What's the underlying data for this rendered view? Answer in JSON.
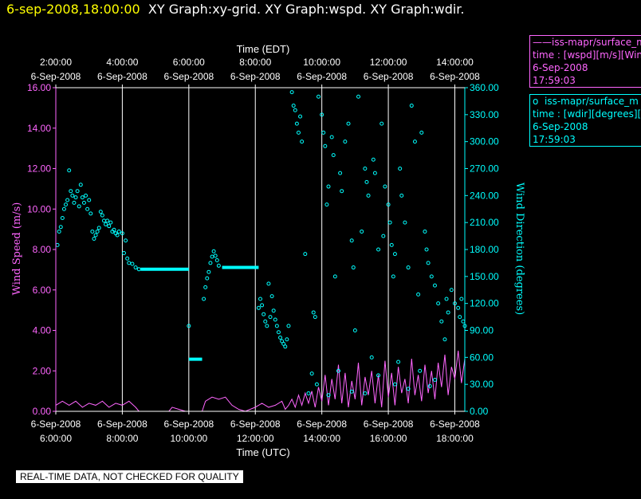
{
  "header": {
    "timestamp": "6-sep-2008,18:00:00",
    "graphs": "XY Graph:xy-grid.  XY Graph:wspd.  XY Graph:wdir."
  },
  "legend": [
    {
      "symbol": "——",
      "name": "iss-mapr/surface_m",
      "line2": "time : [wspd][m/s][Wind",
      "date": "6-Sep-2008",
      "time": "17:59:03",
      "color": "#ff66ff"
    },
    {
      "symbol": "o",
      "name": "iss-mapr/surface_m",
      "line2": "time : [wdir][degrees][W",
      "date": "6-Sep-2008",
      "time": "17:59:03",
      "color": "#00ffff"
    }
  ],
  "note": "REAL-TIME DATA, NOT CHECKED FOR QUALITY",
  "colors": {
    "wspd": "#ff66ff",
    "wdir": "#00ffff",
    "grid": "#ffffff",
    "background": "#000000"
  },
  "chart_data": {
    "type": "scatter",
    "top_axis": {
      "label": "Time (EDT)",
      "ticks": [
        {
          "x": 6,
          "t": "2:00:00",
          "d": "6-Sep-2008"
        },
        {
          "x": 8,
          "t": "4:00:00",
          "d": "6-Sep-2008"
        },
        {
          "x": 10,
          "t": "6:00:00",
          "d": "6-Sep-2008"
        },
        {
          "x": 12,
          "t": "8:00:00",
          "d": "6-Sep-2008"
        },
        {
          "x": 14,
          "t": "10:00:00",
          "d": "6-Sep-2008"
        },
        {
          "x": 16,
          "t": "12:00:00",
          "d": "6-Sep-2008"
        },
        {
          "x": 18,
          "t": "14:00:00",
          "d": "6-Sep-2008"
        }
      ]
    },
    "bottom_axis": {
      "label": "Time (UTC)",
      "ticks": [
        {
          "x": 6,
          "t": "6:00:00",
          "d": "6-Sep-2008"
        },
        {
          "x": 8,
          "t": "8:00:00",
          "d": "6-Sep-2008"
        },
        {
          "x": 10,
          "t": "10:00:00",
          "d": "6-Sep-2008"
        },
        {
          "x": 12,
          "t": "12:00:00",
          "d": "6-Sep-2008"
        },
        {
          "x": 14,
          "t": "14:00:00",
          "d": "6-Sep-2008"
        },
        {
          "x": 16,
          "t": "16:00:00",
          "d": "6-Sep-2008"
        },
        {
          "x": 18,
          "t": "18:00:00",
          "d": "6-Sep-2008"
        }
      ]
    },
    "xlim": [
      6,
      18.3
    ],
    "grid_x": [
      8,
      10,
      12,
      14,
      16,
      18
    ],
    "left_axis": {
      "label": "Wind Speed (m/s)",
      "range": [
        0,
        16
      ],
      "ticks": [
        "0.00",
        "2.00",
        "4.00",
        "6.00",
        "8.00",
        "10.00",
        "12.00",
        "14.00",
        "16.00"
      ]
    },
    "right_axis": {
      "label": "Wind Direction (degrees)",
      "range": [
        0,
        360
      ],
      "ticks": [
        "0.00",
        "30.00",
        "60.00",
        "90.00",
        "120.00",
        "150.00",
        "180.00",
        "210.00",
        "240.00",
        "270.00",
        "300.00",
        "330.00",
        "360.00"
      ]
    },
    "series": [
      {
        "key": "wspd",
        "type": "line",
        "axis": "left",
        "points": [
          [
            6,
            0.3
          ],
          [
            6.2,
            0.5
          ],
          [
            6.4,
            0.3
          ],
          [
            6.6,
            0.5
          ],
          [
            6.8,
            0.2
          ],
          [
            7.0,
            0.4
          ],
          [
            7.2,
            0.3
          ],
          [
            7.4,
            0.5
          ],
          [
            7.6,
            0.2
          ],
          [
            7.8,
            0.4
          ],
          [
            8.0,
            0.3
          ],
          [
            8.2,
            0.5
          ],
          [
            8.4,
            0.2
          ],
          [
            8.5,
            0.0
          ],
          [
            9.4,
            0.0
          ],
          [
            9.5,
            0.2
          ],
          [
            9.7,
            0.1
          ],
          [
            9.9,
            0.0
          ],
          [
            10.4,
            0.0
          ],
          [
            10.5,
            0.5
          ],
          [
            10.7,
            0.7
          ],
          [
            10.9,
            0.6
          ],
          [
            11.1,
            0.7
          ],
          [
            11.3,
            0.3
          ],
          [
            11.5,
            0.1
          ],
          [
            11.7,
            0.0
          ],
          [
            12.0,
            0.2
          ],
          [
            12.2,
            0.4
          ],
          [
            12.4,
            0.2
          ],
          [
            12.6,
            0.3
          ],
          [
            12.8,
            0.5
          ],
          [
            12.9,
            0.1
          ],
          [
            13.0,
            0.3
          ],
          [
            13.1,
            0.6
          ],
          [
            13.2,
            0.2
          ],
          [
            13.3,
            0.8
          ],
          [
            13.4,
            0.3
          ],
          [
            13.5,
            0.9
          ],
          [
            13.6,
            0.4
          ],
          [
            13.7,
            1.0
          ],
          [
            13.8,
            0.2
          ],
          [
            13.9,
            1.2
          ],
          [
            14.0,
            0.5
          ],
          [
            14.1,
            1.8
          ],
          [
            14.2,
            0.3
          ],
          [
            14.3,
            1.6
          ],
          [
            14.4,
            0.6
          ],
          [
            14.5,
            2.3
          ],
          [
            14.6,
            0.4
          ],
          [
            14.7,
            1.9
          ],
          [
            14.8,
            0.2
          ],
          [
            14.9,
            1.5
          ],
          [
            15.0,
            0.6
          ],
          [
            15.1,
            2.4
          ],
          [
            15.2,
            0.3
          ],
          [
            15.3,
            1.7
          ],
          [
            15.4,
            0.8
          ],
          [
            15.5,
            2.0
          ],
          [
            15.6,
            0.4
          ],
          [
            15.7,
            1.8
          ],
          [
            15.8,
            0.2
          ],
          [
            15.9,
            2.5
          ],
          [
            16.0,
            0.7
          ],
          [
            16.1,
            1.9
          ],
          [
            16.2,
            0.3
          ],
          [
            16.3,
            2.2
          ],
          [
            16.4,
            0.9
          ],
          [
            16.5,
            1.6
          ],
          [
            16.6,
            0.4
          ],
          [
            16.7,
            2.6
          ],
          [
            16.8,
            0.8
          ],
          [
            16.9,
            1.8
          ],
          [
            17.0,
            0.5
          ],
          [
            17.1,
            2.3
          ],
          [
            17.2,
            0.9
          ],
          [
            17.3,
            2.0
          ],
          [
            17.4,
            0.6
          ],
          [
            17.5,
            2.4
          ],
          [
            17.6,
            1.2
          ],
          [
            17.7,
            2.8
          ],
          [
            17.8,
            0.8
          ],
          [
            17.9,
            2.2
          ],
          [
            18.0,
            1.6
          ],
          [
            18.1,
            3.0
          ],
          [
            18.2,
            1.4
          ],
          [
            18.3,
            2.6
          ]
        ]
      },
      {
        "key": "wdir",
        "type": "scatter",
        "axis": "right",
        "points": [
          [
            6.05,
            185
          ],
          [
            6.1,
            200
          ],
          [
            6.15,
            205
          ],
          [
            6.2,
            215
          ],
          [
            6.25,
            225
          ],
          [
            6.3,
            230
          ],
          [
            6.35,
            235
          ],
          [
            6.4,
            268
          ],
          [
            6.45,
            245
          ],
          [
            6.5,
            240
          ],
          [
            6.55,
            232
          ],
          [
            6.6,
            238
          ],
          [
            6.65,
            245
          ],
          [
            6.7,
            228
          ],
          [
            6.75,
            252
          ],
          [
            6.8,
            238
          ],
          [
            6.85,
            232
          ],
          [
            6.9,
            240
          ],
          [
            6.95,
            225
          ],
          [
            7.0,
            235
          ],
          [
            7.05,
            220
          ],
          [
            7.1,
            200
          ],
          [
            7.15,
            192
          ],
          [
            7.2,
            196
          ],
          [
            7.25,
            200
          ],
          [
            7.3,
            204
          ],
          [
            7.35,
            222
          ],
          [
            7.4,
            218
          ],
          [
            7.45,
            212
          ],
          [
            7.5,
            208
          ],
          [
            7.55,
            212
          ],
          [
            7.6,
            206
          ],
          [
            7.65,
            210
          ],
          [
            7.7,
            200
          ],
          [
            7.75,
            202
          ],
          [
            7.8,
            198
          ],
          [
            7.85,
            196
          ],
          [
            7.9,
            200
          ],
          [
            8.0,
            198
          ],
          [
            8.05,
            176
          ],
          [
            8.1,
            190
          ],
          [
            8.15,
            170
          ],
          [
            8.2,
            165
          ],
          [
            8.3,
            164
          ],
          [
            8.4,
            160
          ],
          [
            8.5,
            158
          ],
          [
            10.0,
            95
          ],
          [
            10.45,
            125
          ],
          [
            10.5,
            138
          ],
          [
            10.55,
            148
          ],
          [
            10.6,
            155
          ],
          [
            10.65,
            165
          ],
          [
            10.7,
            172
          ],
          [
            10.75,
            178
          ],
          [
            10.8,
            173
          ],
          [
            10.85,
            168
          ],
          [
            10.9,
            162
          ],
          [
            12.1,
            115
          ],
          [
            12.15,
            125
          ],
          [
            12.2,
            118
          ],
          [
            12.25,
            108
          ],
          [
            12.3,
            100
          ],
          [
            12.35,
            95
          ],
          [
            12.4,
            142
          ],
          [
            12.45,
            105
          ],
          [
            12.5,
            128
          ],
          [
            12.55,
            112
          ],
          [
            12.6,
            102
          ],
          [
            12.65,
            95
          ],
          [
            12.7,
            88
          ],
          [
            12.75,
            82
          ],
          [
            12.8,
            78
          ],
          [
            12.85,
            75
          ],
          [
            12.9,
            72
          ],
          [
            12.95,
            80
          ],
          [
            13.0,
            95
          ],
          [
            13.1,
            355
          ],
          [
            13.15,
            340
          ],
          [
            13.2,
            335
          ],
          [
            13.25,
            320
          ],
          [
            13.3,
            310
          ],
          [
            13.35,
            328
          ],
          [
            13.4,
            300
          ],
          [
            13.5,
            175
          ],
          [
            13.6,
            20
          ],
          [
            13.7,
            42
          ],
          [
            13.75,
            110
          ],
          [
            13.8,
            105
          ],
          [
            13.9,
            350
          ],
          [
            14.0,
            330
          ],
          [
            14.05,
            310
          ],
          [
            14.1,
            295
          ],
          [
            14.15,
            230
          ],
          [
            14.2,
            250
          ],
          [
            14.3,
            305
          ],
          [
            14.35,
            285
          ],
          [
            14.4,
            150
          ],
          [
            14.5,
            45
          ],
          [
            14.55,
            265
          ],
          [
            14.6,
            245
          ],
          [
            14.7,
            300
          ],
          [
            14.8,
            320
          ],
          [
            14.9,
            190
          ],
          [
            14.95,
            160
          ],
          [
            15.0,
            90
          ],
          [
            15.1,
            350
          ],
          [
            15.2,
            200
          ],
          [
            15.3,
            270
          ],
          [
            15.35,
            255
          ],
          [
            15.4,
            240
          ],
          [
            15.5,
            60
          ],
          [
            15.55,
            280
          ],
          [
            15.6,
            265
          ],
          [
            15.7,
            180
          ],
          [
            15.8,
            320
          ],
          [
            15.85,
            195
          ],
          [
            15.9,
            250
          ],
          [
            16.0,
            230
          ],
          [
            16.05,
            210
          ],
          [
            16.1,
            185
          ],
          [
            16.15,
            150
          ],
          [
            16.2,
            175
          ],
          [
            16.3,
            55
          ],
          [
            16.35,
            270
          ],
          [
            16.4,
            240
          ],
          [
            16.5,
            210
          ],
          [
            16.6,
            160
          ],
          [
            16.7,
            340
          ],
          [
            16.8,
            300
          ],
          [
            16.9,
            130
          ],
          [
            17.0,
            310
          ],
          [
            17.1,
            200
          ],
          [
            17.15,
            180
          ],
          [
            17.2,
            165
          ],
          [
            17.3,
            150
          ],
          [
            17.4,
            140
          ],
          [
            17.5,
            120
          ],
          [
            17.6,
            100
          ],
          [
            17.7,
            80
          ],
          [
            17.75,
            125
          ],
          [
            17.8,
            110
          ],
          [
            17.9,
            135
          ],
          [
            18.0,
            120
          ],
          [
            18.1,
            115
          ],
          [
            18.15,
            105
          ],
          [
            18.2,
            125
          ],
          [
            18.25,
            100
          ],
          [
            18.3,
            95
          ],
          [
            15.3,
            20
          ],
          [
            16.2,
            30
          ],
          [
            16.6,
            25
          ],
          [
            17.4,
            35
          ],
          [
            15.7,
            40
          ],
          [
            14.2,
            18
          ],
          [
            14.9,
            22
          ],
          [
            13.85,
            30
          ],
          [
            16.95,
            45
          ],
          [
            17.25,
            28
          ]
        ]
      },
      {
        "key": "wdir_segments",
        "type": "flat",
        "axis": "right",
        "segments": [
          [
            8.55,
            10.0,
            158
          ],
          [
            10.0,
            10.4,
            58
          ],
          [
            11.0,
            12.1,
            160
          ]
        ]
      }
    ]
  }
}
